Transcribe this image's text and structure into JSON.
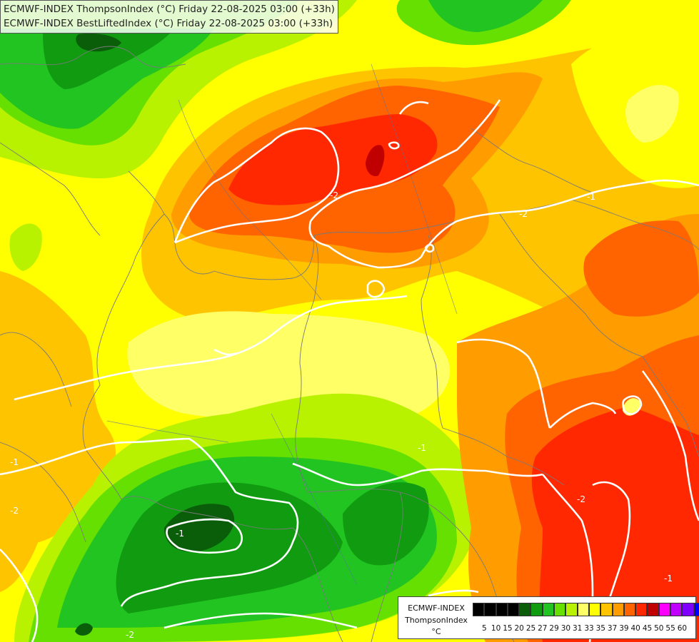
{
  "header": {
    "line1": "ECMWF-INDEX ThompsonIndex (°C) Friday 22-08-2025 03:00 (+33h)",
    "line2": "ECMWF-INDEX BestLiftedIndex (°C) Friday 22-08-2025 03:00 (+33h)"
  },
  "legend": {
    "title": "ECMWF-INDEX",
    "subtitle": "ThompsonIndex",
    "unit": "°C",
    "ticks": [
      "5",
      "10",
      "15",
      "20",
      "25",
      "27",
      "29",
      "30",
      "31",
      "33",
      "35",
      "37",
      "39",
      "40",
      "45",
      "50",
      "55",
      "60"
    ],
    "colors": [
      "#000000",
      "#000000",
      "#000000",
      "#000000",
      "#0a5e0a",
      "#109b10",
      "#22c422",
      "#66e000",
      "#b8f200",
      "#ffff66",
      "#ffff00",
      "#ffc400",
      "#ff9c00",
      "#ff6400",
      "#ff2800",
      "#c00000",
      "#ff00ff",
      "#c000ff",
      "#8000ff",
      "#0000ff"
    ]
  },
  "contour_labels": [
    "-2",
    "-1",
    "-2",
    "-1",
    "-2",
    "-1",
    "-2",
    "-2",
    "-1",
    "-1"
  ],
  "map_colors": {
    "dark_green": "#0a5e0a",
    "green": "#109b10",
    "bright_green": "#22c422",
    "lime": "#66e000",
    "light_lime": "#b8f200",
    "pale_yellow": "#ffff66",
    "yellow": "#ffff00",
    "light_orange": "#ffc400",
    "orange": "#ff9c00",
    "dark_orange": "#ff6400",
    "red": "#ff2800",
    "dark_red": "#c00000",
    "isoline": "#ffffff",
    "border": "#7a7a7a"
  }
}
